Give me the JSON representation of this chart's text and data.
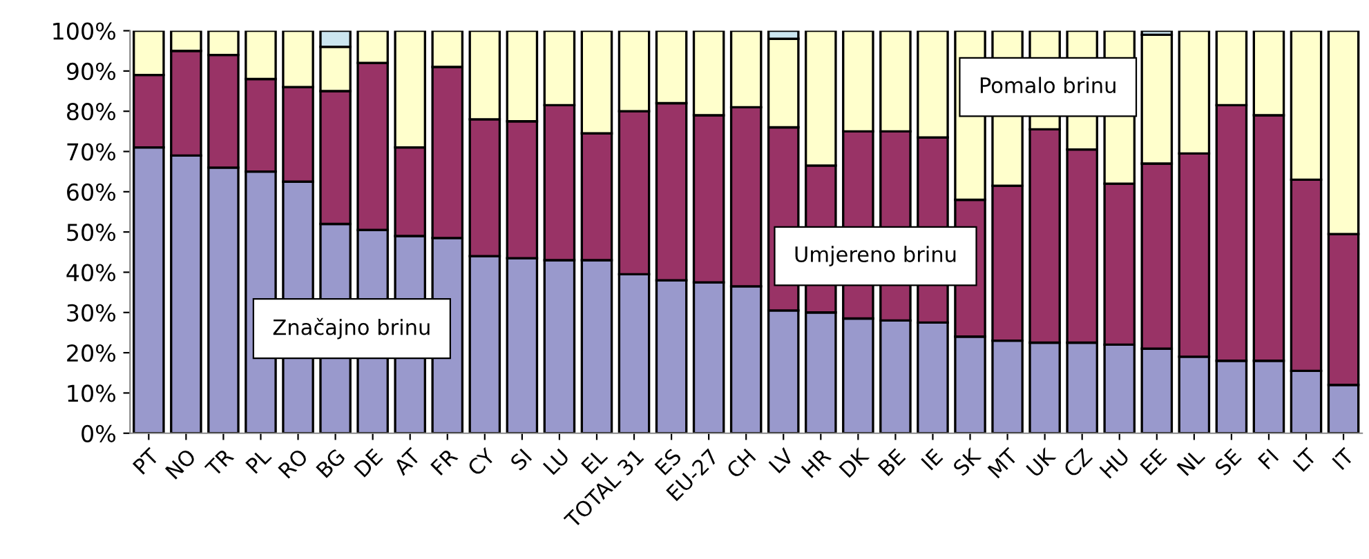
{
  "chart_data": {
    "type": "bar",
    "stacked": true,
    "grid": false,
    "legend": false,
    "categories": [
      "PT",
      "NO",
      "TR",
      "PL",
      "RO",
      "BG",
      "DE",
      "AT",
      "FR",
      "CY",
      "SI",
      "LU",
      "EL",
      "TOTAL 31",
      "ES",
      "EU-27",
      "CH",
      "LV",
      "HR",
      "DK",
      "BE",
      "IE",
      "SK",
      "MT",
      "UK",
      "CZ",
      "HU",
      "EE",
      "NL",
      "SE",
      "FI",
      "LT",
      "IT"
    ],
    "ylim": [
      0,
      100
    ],
    "yticks": [
      {
        "value": 0,
        "label": "0%"
      },
      {
        "value": 10,
        "label": "10%"
      },
      {
        "value": 20,
        "label": "20%"
      },
      {
        "value": 30,
        "label": "30%"
      },
      {
        "value": 40,
        "label": "40%"
      },
      {
        "value": 50,
        "label": "50%"
      },
      {
        "value": 60,
        "label": "60%"
      },
      {
        "value": 70,
        "label": "70%"
      },
      {
        "value": 80,
        "label": "80%"
      },
      {
        "value": 90,
        "label": "90%"
      },
      {
        "value": 100,
        "label": "100%"
      }
    ],
    "series": [
      {
        "name": "Značajno brinu",
        "color": "#9999cc",
        "values": [
          71,
          69,
          66,
          65,
          62.5,
          52,
          50.5,
          49,
          48.5,
          44,
          43.5,
          43,
          43,
          39.5,
          38,
          37.5,
          36.5,
          30.5,
          30,
          28.5,
          28,
          27.5,
          24,
          23,
          22.5,
          22.5,
          22,
          21,
          19,
          18,
          18,
          15.5,
          12
        ]
      },
      {
        "name": "Umjereno brinu",
        "color": "#993366",
        "values": [
          18,
          26,
          28,
          23,
          23.5,
          33,
          41.5,
          22,
          42.5,
          34,
          34,
          38.5,
          31.5,
          40.5,
          44,
          41.5,
          44.5,
          45.5,
          36.5,
          46.5,
          47,
          46,
          34,
          38.5,
          53,
          48,
          40,
          46,
          50.5,
          63.5,
          61,
          47.5,
          37.5
        ]
      },
      {
        "name": "Pomalo brinu",
        "color": "#ffffcc",
        "values": [
          11,
          5,
          6,
          12,
          14,
          11,
          8,
          29,
          9,
          22,
          22.5,
          18.5,
          25.5,
          20,
          18,
          21,
          19,
          22,
          33.5,
          25,
          25,
          26.5,
          42,
          38.5,
          24.5,
          29.5,
          38,
          32,
          30.5,
          18.5,
          21,
          37,
          50.5
        ]
      },
      {
        "color": "#cce6f0",
        "values": [
          null,
          null,
          null,
          null,
          null,
          4,
          null,
          null,
          null,
          null,
          null,
          null,
          null,
          null,
          null,
          null,
          null,
          2,
          null,
          null,
          null,
          null,
          null,
          null,
          null,
          null,
          null,
          1,
          null,
          null,
          null,
          null,
          null
        ]
      }
    ]
  }
}
